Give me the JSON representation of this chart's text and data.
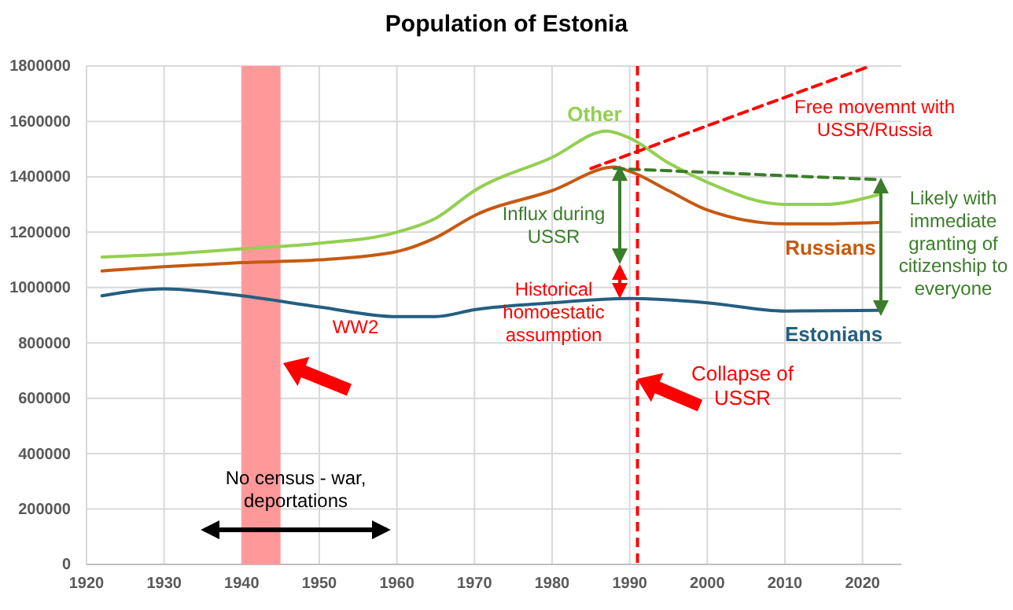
{
  "chart_data": {
    "type": "line",
    "title": "Population of Estonia",
    "xlim": [
      1920,
      2025
    ],
    "xticks": [
      1920,
      1930,
      1940,
      1950,
      1960,
      1970,
      1980,
      1990,
      2000,
      2010,
      2020
    ],
    "ylim": [
      0,
      1800000
    ],
    "yticks": [
      0,
      200000,
      400000,
      600000,
      800000,
      1000000,
      1200000,
      1400000,
      1600000,
      1800000
    ],
    "grid": true,
    "series": [
      {
        "name": "Other",
        "color": "#92d050",
        "x": [
          1922,
          1930,
          1940,
          1950,
          1960,
          1965,
          1970,
          1980,
          1987,
          1990,
          1995,
          2000,
          2010,
          2015,
          2022
        ],
        "values": [
          1110000,
          1120000,
          1140000,
          1160000,
          1200000,
          1250000,
          1350000,
          1470000,
          1565000,
          1540000,
          1450000,
          1380000,
          1300000,
          1300000,
          1335000
        ]
      },
      {
        "name": "Russians",
        "color": "#c55a11",
        "x": [
          1922,
          1930,
          1940,
          1950,
          1960,
          1965,
          1970,
          1980,
          1988,
          1990,
          1995,
          2000,
          2010,
          2015,
          2022
        ],
        "values": [
          1060000,
          1075000,
          1090000,
          1100000,
          1130000,
          1180000,
          1260000,
          1350000,
          1435000,
          1420000,
          1350000,
          1280000,
          1230000,
          1230000,
          1235000
        ]
      },
      {
        "name": "Estonians",
        "color": "#255e80",
        "x": [
          1922,
          1930,
          1940,
          1950,
          1960,
          1965,
          1970,
          1980,
          1990,
          2000,
          2010,
          2022
        ],
        "values": [
          970000,
          995000,
          970000,
          930000,
          895000,
          895000,
          920000,
          945000,
          960000,
          945000,
          915000,
          918000
        ]
      },
      {
        "color": "#ff0000",
        "line_style": "dashed",
        "x": [
          1985,
          2021
        ],
        "values": [
          1430000,
          1800000
        ]
      },
      {
        "color": "#3a7d2a",
        "line_style": "dashed",
        "x": [
          1988,
          2022
        ],
        "values": [
          1430000,
          1390000
        ]
      }
    ],
    "bands": [
      {
        "axis": "x",
        "from": 1940,
        "to": 1945,
        "color": "#ff9999"
      }
    ],
    "ref_lines": [
      {
        "axis": "x",
        "value": 1991,
        "label": "Collapse of USSR",
        "color": "#ff0000",
        "line_style": "dashed"
      }
    ],
    "annotations": [
      "WW2",
      "No census - war, deportations",
      "Influx during USSR",
      "Historical homoestatic assumption",
      "Free movemnt with USSR/Russia",
      "Likely with immediate granting of citizenship to everyone"
    ]
  }
}
